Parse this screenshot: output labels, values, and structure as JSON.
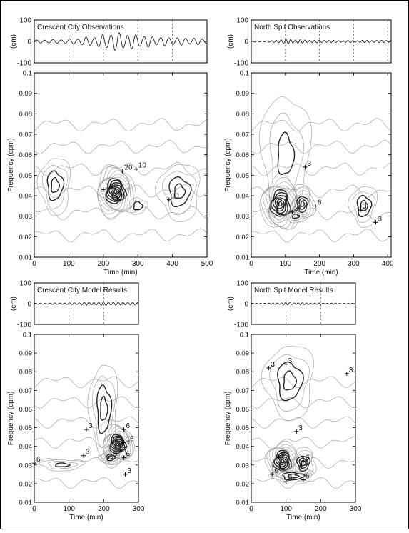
{
  "colors": {
    "ink": "#111111",
    "contour_light": "#9a9a9a",
    "contour_dark": "#222222",
    "border": "#000000"
  },
  "chart_data": [
    {
      "id": "cc-obs",
      "type": "time-frequency-contour",
      "ts_title": "Crescent City Observations",
      "ts_ylabel": "(cm)",
      "ts_yticks": [
        "100",
        "0",
        "-100"
      ],
      "ts_ylim": [
        -100,
        100
      ],
      "ts_xlim": [
        0,
        500
      ],
      "ts_vlines": [
        100,
        200,
        300,
        400
      ],
      "ts_amp": 45,
      "ts_envelope": [
        [
          0,
          0.15
        ],
        [
          100,
          0.25
        ],
        [
          180,
          0.55
        ],
        [
          230,
          1.0
        ],
        [
          280,
          0.8
        ],
        [
          350,
          0.5
        ],
        [
          430,
          0.4
        ],
        [
          500,
          0.3
        ]
      ],
      "ts_period": 24,
      "xlabel": "Time (min)",
      "ylabel": "Frequency (cpm)",
      "xlim": [
        0,
        500
      ],
      "ylim": [
        0.01,
        0.1
      ],
      "xticks": [
        "0",
        "100",
        "200",
        "300",
        "400",
        "500"
      ],
      "yticks": [
        "0.01",
        "0.02",
        "0.03",
        "0.04",
        "0.05",
        "0.06",
        "0.07",
        "0.08",
        "0.09",
        "0.1"
      ],
      "peaks": [
        {
          "x": 235,
          "y": 0.042,
          "rx": 55,
          "ry": 0.012,
          "rings": 14
        },
        {
          "x": 60,
          "y": 0.045,
          "rx": 45,
          "ry": 0.014,
          "rings": 4
        },
        {
          "x": 420,
          "y": 0.042,
          "rx": 60,
          "ry": 0.014,
          "rings": 4
        },
        {
          "x": 300,
          "y": 0.035,
          "rx": 25,
          "ry": 0.004,
          "rings": 2
        }
      ],
      "annotations": [
        {
          "x": 255,
          "y": 0.052,
          "label": "20"
        },
        {
          "x": 295,
          "y": 0.053,
          "label": "10"
        },
        {
          "x": 200,
          "y": 0.043,
          "label": "10"
        },
        {
          "x": 240,
          "y": 0.039,
          "label": "10"
        },
        {
          "x": 390,
          "y": 0.038,
          "label": "10"
        }
      ]
    },
    {
      "id": "ns-obs",
      "type": "time-frequency-contour",
      "ts_title": "North Spit Observations",
      "ts_ylabel": "(cm)",
      "ts_yticks": [
        "100",
        "0",
        "-100"
      ],
      "ts_ylim": [
        -100,
        100
      ],
      "ts_xlim": [
        0,
        410
      ],
      "ts_vlines": [
        100,
        200,
        300,
        400
      ],
      "ts_amp": 12,
      "ts_envelope": [
        [
          0,
          0.2
        ],
        [
          60,
          0.3
        ],
        [
          100,
          1.0
        ],
        [
          160,
          0.6
        ],
        [
          250,
          0.4
        ],
        [
          410,
          0.5
        ]
      ],
      "ts_period": 14,
      "xlabel": "Time (min)",
      "ylabel": "Frequency (cpm)",
      "xlim": [
        0,
        410
      ],
      "ylim": [
        0.01,
        0.1
      ],
      "xticks": [
        "0",
        "100",
        "200",
        "300",
        "400"
      ],
      "yticks": [
        "0.01",
        "0.02",
        "0.03",
        "0.04",
        "0.05",
        "0.06",
        "0.07",
        "0.08",
        "0.09",
        "0.1"
      ],
      "peaks": [
        {
          "x": 85,
          "y": 0.036,
          "rx": 55,
          "ry": 0.013,
          "rings": 12
        },
        {
          "x": 150,
          "y": 0.036,
          "rx": 35,
          "ry": 0.009,
          "rings": 7
        },
        {
          "x": 130,
          "y": 0.03,
          "rx": 30,
          "ry": 0.003,
          "rings": 3
        },
        {
          "x": 330,
          "y": 0.035,
          "rx": 40,
          "ry": 0.01,
          "rings": 4
        },
        {
          "x": 100,
          "y": 0.06,
          "rx": 70,
          "ry": 0.03,
          "rings": 3
        }
      ],
      "annotations": [
        {
          "x": 158,
          "y": 0.054,
          "label": "3"
        },
        {
          "x": 188,
          "y": 0.035,
          "label": "6"
        },
        {
          "x": 120,
          "y": 0.032,
          "label": "3"
        },
        {
          "x": 320,
          "y": 0.033,
          "label": "3"
        },
        {
          "x": 365,
          "y": 0.027,
          "label": "3"
        }
      ]
    },
    {
      "id": "cc-model",
      "type": "time-frequency-contour",
      "ts_title": "Crescent City Model Results",
      "ts_ylabel": "(cm)",
      "ts_yticks": [
        "100",
        "0",
        "-100"
      ],
      "ts_ylim": [
        -100,
        100
      ],
      "ts_xlim": [
        0,
        300
      ],
      "ts_vlines": [
        100,
        200
      ],
      "ts_amp": 9,
      "ts_envelope": [
        [
          0,
          0.3
        ],
        [
          100,
          0.5
        ],
        [
          200,
          1.0
        ],
        [
          300,
          0.7
        ]
      ],
      "ts_period": 14,
      "xlabel": "Time (min)",
      "ylabel": "Frequency (cpm)",
      "xlim": [
        0,
        300
      ],
      "ylim": [
        0.01,
        0.1
      ],
      "xticks": [
        "0",
        "100",
        "200",
        "300"
      ],
      "yticks": [
        "0.01",
        "0.02",
        "0.03",
        "0.04",
        "0.05",
        "0.06",
        "0.07",
        "0.08",
        "0.09",
        "0.1"
      ],
      "peaks": [
        {
          "x": 240,
          "y": 0.041,
          "rx": 45,
          "ry": 0.01,
          "rings": 14
        },
        {
          "x": 220,
          "y": 0.034,
          "rx": 30,
          "ry": 0.004,
          "rings": 5
        },
        {
          "x": 200,
          "y": 0.06,
          "rx": 40,
          "ry": 0.025,
          "rings": 4
        },
        {
          "x": 80,
          "y": 0.03,
          "rx": 60,
          "ry": 0.003,
          "rings": 3
        }
      ],
      "annotations": [
        {
          "x": 150,
          "y": 0.049,
          "label": "3"
        },
        {
          "x": 258,
          "y": 0.049,
          "label": "6"
        },
        {
          "x": 142,
          "y": 0.035,
          "label": "3"
        },
        {
          "x": 258,
          "y": 0.042,
          "label": "15"
        },
        {
          "x": 236,
          "y": 0.036,
          "label": "15"
        },
        {
          "x": 258,
          "y": 0.034,
          "label": "6"
        },
        {
          "x": 0,
          "y": 0.031,
          "label": "6"
        },
        {
          "x": 262,
          "y": 0.025,
          "label": "3"
        }
      ]
    },
    {
      "id": "ns-model",
      "type": "time-frequency-contour",
      "ts_title": "North Spit Model Results",
      "ts_ylabel": "(cm)",
      "ts_yticks": [
        "100",
        "0",
        "-100"
      ],
      "ts_ylim": [
        -100,
        100
      ],
      "ts_xlim": [
        0,
        300
      ],
      "ts_vlines": [
        100,
        200
      ],
      "ts_amp": 6,
      "ts_envelope": [
        [
          0,
          0.3
        ],
        [
          60,
          0.5
        ],
        [
          100,
          1.0
        ],
        [
          180,
          0.6
        ],
        [
          300,
          0.4
        ]
      ],
      "ts_period": 12,
      "xlabel": "Time (min)",
      "ylabel": "Frequency (cpm)",
      "xlim": [
        0,
        300
      ],
      "ylim": [
        0.01,
        0.1
      ],
      "xticks": [
        "0",
        "100",
        "200",
        "300"
      ],
      "yticks": [
        "0.01",
        "0.02",
        "0.03",
        "0.04",
        "0.05",
        "0.06",
        "0.07",
        "0.08",
        "0.09",
        "0.1"
      ],
      "peaks": [
        {
          "x": 90,
          "y": 0.032,
          "rx": 45,
          "ry": 0.01,
          "rings": 11
        },
        {
          "x": 150,
          "y": 0.031,
          "rx": 35,
          "ry": 0.008,
          "rings": 6
        },
        {
          "x": 120,
          "y": 0.024,
          "rx": 60,
          "ry": 0.004,
          "rings": 4
        },
        {
          "x": 110,
          "y": 0.075,
          "rx": 70,
          "ry": 0.02,
          "rings": 4
        }
      ],
      "annotations": [
        {
          "x": 50,
          "y": 0.082,
          "label": "3"
        },
        {
          "x": 100,
          "y": 0.084,
          "label": "3"
        },
        {
          "x": 275,
          "y": 0.079,
          "label": "3"
        },
        {
          "x": 130,
          "y": 0.048,
          "label": "3"
        },
        {
          "x": 80,
          "y": 0.034,
          "label": "6"
        },
        {
          "x": 150,
          "y": 0.032,
          "label": "6"
        },
        {
          "x": 145,
          "y": 0.029,
          "label": "3"
        },
        {
          "x": 60,
          "y": 0.025,
          "label": "6"
        },
        {
          "x": 100,
          "y": 0.021,
          "label": "3"
        },
        {
          "x": 150,
          "y": 0.022,
          "label": "6"
        }
      ]
    }
  ]
}
